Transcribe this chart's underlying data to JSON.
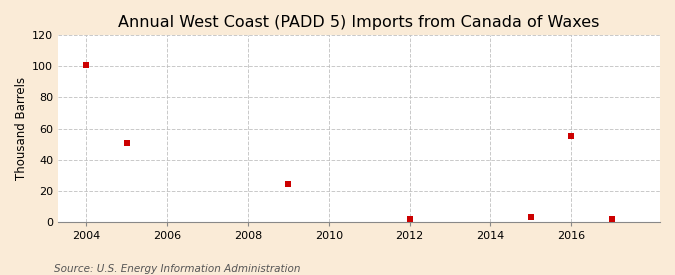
{
  "title": "Annual West Coast (PADD 5) Imports from Canada of Waxes",
  "ylabel": "Thousand Barrels",
  "source": "Source: U.S. Energy Information Administration",
  "figure_background_color": "#faebd7",
  "plot_background_color": "#ffffff",
  "data_points": [
    {
      "year": 2004,
      "value": 101
    },
    {
      "year": 2005,
      "value": 51
    },
    {
      "year": 2009,
      "value": 24
    },
    {
      "year": 2012,
      "value": 2
    },
    {
      "year": 2015,
      "value": 3
    },
    {
      "year": 2016,
      "value": 55
    },
    {
      "year": 2017,
      "value": 2
    }
  ],
  "marker_color": "#cc0000",
  "marker_style": "s",
  "marker_size": 4,
  "xlim": [
    2003.3,
    2018.2
  ],
  "ylim": [
    0,
    120
  ],
  "yticks": [
    0,
    20,
    40,
    60,
    80,
    100,
    120
  ],
  "xticks": [
    2004,
    2006,
    2008,
    2010,
    2012,
    2014,
    2016
  ],
  "grid_color": "#bbbbbb",
  "grid_linestyle": "--",
  "grid_alpha": 0.8,
  "title_fontsize": 11.5,
  "ylabel_fontsize": 8.5,
  "tick_fontsize": 8,
  "source_fontsize": 7.5
}
